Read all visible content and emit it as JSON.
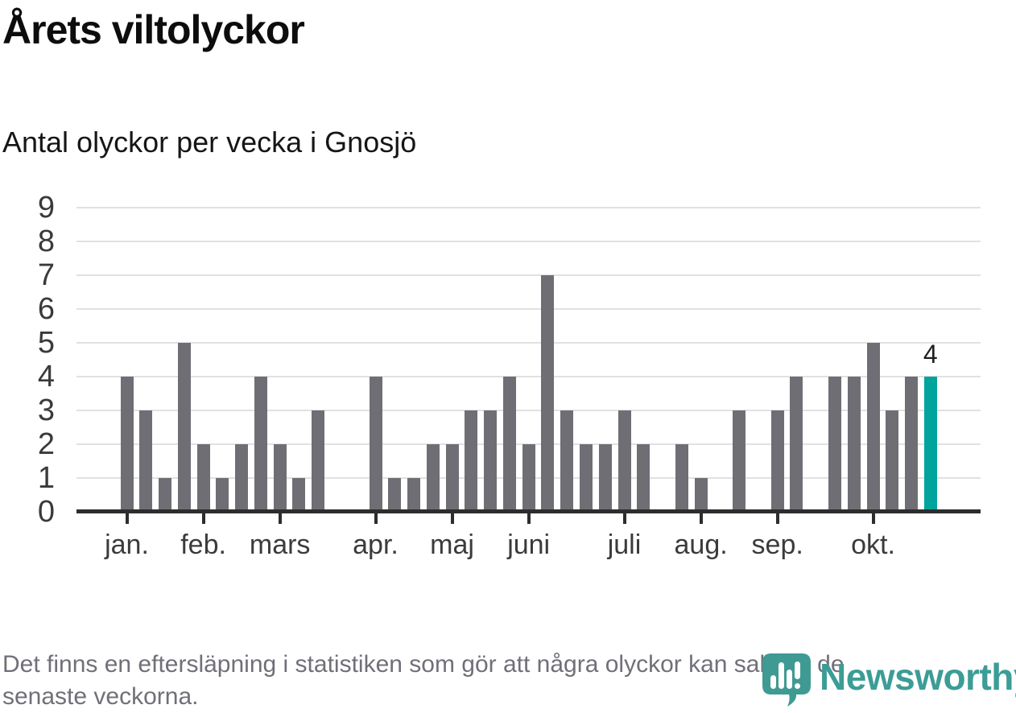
{
  "title": "Årets viltolyckor",
  "subtitle": "Antal olyckor per vecka i Gnosjö",
  "footer": {
    "line1": "Det finns en eftersläpning i statistiken som gör att några olyckor kan saknas de",
    "line2": "senaste veckorna."
  },
  "branding": {
    "name": "Newsworthy",
    "icon": "newsworthy-pin-barchart-icon"
  },
  "colors": {
    "bar": "#6f6e75",
    "highlight_bar": "#00a49c",
    "axis": "#2d2d2d",
    "gridline": "#e1e1e1",
    "tick_label": "#3b3b3b",
    "footer_text": "#716f78",
    "brand_teal": "#3c9d96"
  },
  "chart_data": {
    "type": "bar",
    "title": "Årets viltolyckor",
    "subtitle": "Antal olyckor per vecka i Gnosjö",
    "x_unit": "week",
    "values": [
      4,
      3,
      1,
      5,
      2,
      1,
      2,
      4,
      2,
      1,
      3,
      0,
      0,
      4,
      1,
      1,
      2,
      2,
      3,
      3,
      4,
      2,
      7,
      3,
      2,
      2,
      3,
      2,
      0,
      2,
      1,
      0,
      3,
      0,
      3,
      4,
      0,
      4,
      4,
      5,
      3,
      4,
      4
    ],
    "highlight_last_bar": true,
    "last_value_label": "4",
    "ylim": [
      0,
      9
    ],
    "yticks": [
      0,
      1,
      2,
      3,
      4,
      5,
      6,
      7,
      8,
      9
    ],
    "grid": "horizontal",
    "legend": "none",
    "month_ticks": [
      {
        "label": "jan.",
        "week": 1
      },
      {
        "label": "feb.",
        "week": 5
      },
      {
        "label": "mars",
        "week": 9
      },
      {
        "label": "apr.",
        "week": 14
      },
      {
        "label": "maj",
        "week": 18
      },
      {
        "label": "juni",
        "week": 22
      },
      {
        "label": "juli",
        "week": 27
      },
      {
        "label": "aug.",
        "week": 31
      },
      {
        "label": "sep.",
        "week": 35
      },
      {
        "label": "okt.",
        "week": 40
      }
    ]
  }
}
